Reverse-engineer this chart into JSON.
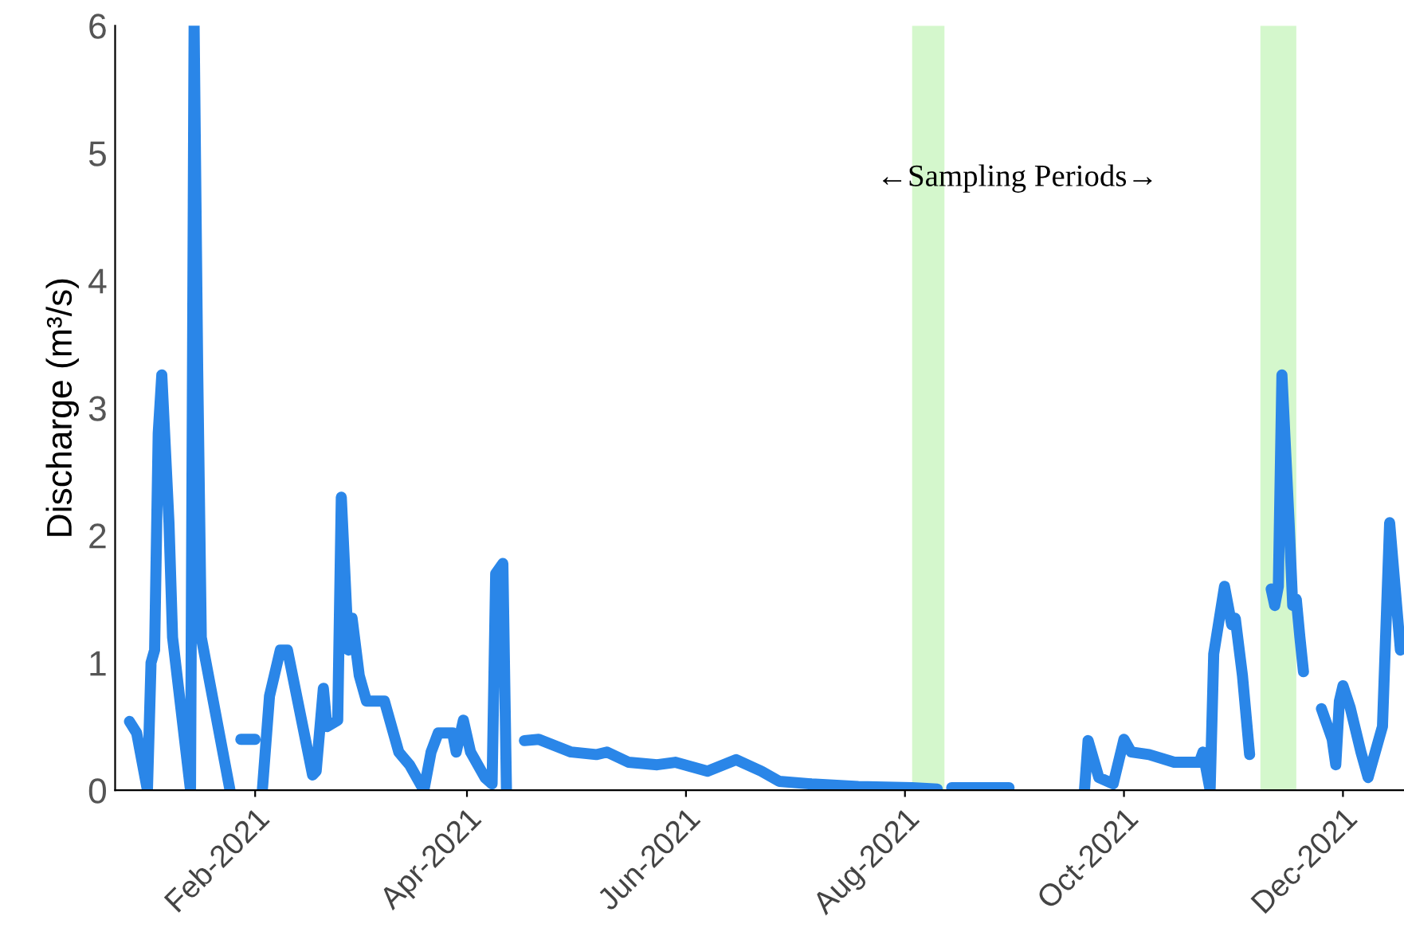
{
  "chart_data": {
    "type": "line",
    "ylabel": "Discharge (m³/s)",
    "x": [
      "2020-12-28",
      "2020-12-30",
      "2021-01-02",
      "2021-01-03",
      "2021-01-04",
      "2021-01-05",
      "2021-01-06",
      "2021-01-08",
      "2021-01-09",
      "2021-01-14",
      "2021-01-15",
      "2021-01-16",
      "2021-01-17",
      "2021-01-25",
      "2021-01-26",
      "2021-01-28",
      "2021-02-01",
      "2021-02-02",
      "2021-02-03",
      "2021-02-05",
      "2021-02-08",
      "2021-02-10",
      "2021-02-17",
      "2021-02-18",
      "2021-02-20",
      "2021-02-21",
      "2021-02-24",
      "2021-02-25",
      "2021-02-27",
      "2021-02-28",
      "2021-03-02",
      "2021-03-04",
      "2021-03-09",
      "2021-03-13",
      "2021-03-16",
      "2021-03-20",
      "2021-03-22",
      "2021-03-24",
      "2021-03-28",
      "2021-03-29",
      "2021-03-31",
      "2021-04-02",
      "2021-04-06",
      "2021-04-08",
      "2021-04-09",
      "2021-04-11",
      "2021-04-12",
      "2021-04-14",
      "2021-04-17",
      "2021-04-21",
      "2021-04-30",
      "2021-05-07",
      "2021-05-10",
      "2021-05-16",
      "2021-05-24",
      "2021-05-29",
      "2021-06-07",
      "2021-06-15",
      "2021-06-22",
      "2021-06-27",
      "2021-07-06",
      "2021-07-19",
      "2021-08-03",
      "2021-08-10",
      "2021-08-12",
      "2021-08-14",
      "2021-08-30",
      "2021-09-10",
      "2021-09-20",
      "2021-09-21",
      "2021-09-24",
      "2021-09-28",
      "2021-10-01",
      "2021-10-03",
      "2021-10-08",
      "2021-10-15",
      "2021-10-22",
      "2021-10-23",
      "2021-10-25",
      "2021-10-26",
      "2021-10-29",
      "2021-10-31",
      "2021-11-01",
      "2021-11-03",
      "2021-11-05",
      "2021-11-08",
      "2021-11-11",
      "2021-11-12",
      "2021-11-13",
      "2021-11-14",
      "2021-11-16",
      "2021-11-17",
      "2021-11-18",
      "2021-11-19",
      "2021-11-20",
      "2021-11-22",
      "2021-11-25",
      "2021-11-28",
      "2021-11-29",
      "2021-11-30",
      "2021-12-01",
      "2021-12-03",
      "2021-12-06",
      "2021-12-08",
      "2021-12-10",
      "2021-12-12",
      "2021-12-14",
      "2021-12-17"
    ],
    "series": [
      {
        "color": "#2a86e8",
        "values": [
          0.54,
          0.45,
          0,
          1.0,
          1.1,
          2.8,
          3.26,
          2.1,
          1.2,
          0,
          6.0,
          3.3,
          1.2,
          0,
          null,
          0.4,
          0.4,
          null,
          0,
          0.74,
          1.1,
          1.1,
          0.12,
          0.15,
          0.8,
          0.5,
          0.55,
          2.3,
          1.1,
          1.35,
          0.9,
          0.7,
          0.7,
          0.3,
          0.2,
          0,
          0.3,
          0.45,
          0.45,
          0.3,
          0.55,
          0.3,
          0.1,
          0.05,
          1.7,
          1.78,
          0,
          null,
          0.39,
          0.4,
          0.3,
          0.28,
          0.3,
          0.22,
          0.2,
          0.22,
          0.15,
          0.24,
          0.15,
          0.07,
          0.05,
          0.03,
          0.02,
          0.01,
          null,
          0.02,
          0.02,
          null,
          0,
          0.39,
          0.1,
          0.05,
          0.4,
          0.3,
          0.28,
          0.22,
          0.22,
          0.3,
          0,
          1.07,
          1.6,
          1.3,
          1.35,
          0.9,
          0.28,
          null,
          1.58,
          1.45,
          1.6,
          3.26,
          2.1,
          1.45,
          1.5,
          1.2,
          0.93,
          null,
          0.64,
          0.4,
          0.2,
          0.7,
          0.82,
          0.65,
          0.3,
          0.1,
          0.3,
          0.5,
          2.1,
          1.1
        ]
      }
    ],
    "xlim": [
      "2020-12-24",
      "2021-12-18"
    ],
    "xticks": [
      {
        "value": "2021-02-01",
        "label": "Feb-2021"
      },
      {
        "value": "2021-04-01",
        "label": "Apr-2021"
      },
      {
        "value": "2021-06-01",
        "label": "Jun-2021"
      },
      {
        "value": "2021-08-01",
        "label": "Aug-2021"
      },
      {
        "value": "2021-10-01",
        "label": "Oct-2021"
      },
      {
        "value": "2021-12-01",
        "label": "Dec-2021"
      }
    ],
    "ylim": [
      0,
      6
    ],
    "yticks": [
      0,
      1,
      2,
      3,
      4,
      5,
      6
    ],
    "bands": [
      {
        "axis": "x",
        "from": "2021-08-03",
        "to": "2021-08-12",
        "color": "#d4f7cc"
      },
      {
        "axis": "x",
        "from": "2021-11-08",
        "to": "2021-11-18",
        "color": "#d4f7cc"
      }
    ],
    "annotations": [
      "←Sampling Periods→"
    ],
    "grid": false,
    "legend": false,
    "marker": "none",
    "line_style": "solid"
  }
}
